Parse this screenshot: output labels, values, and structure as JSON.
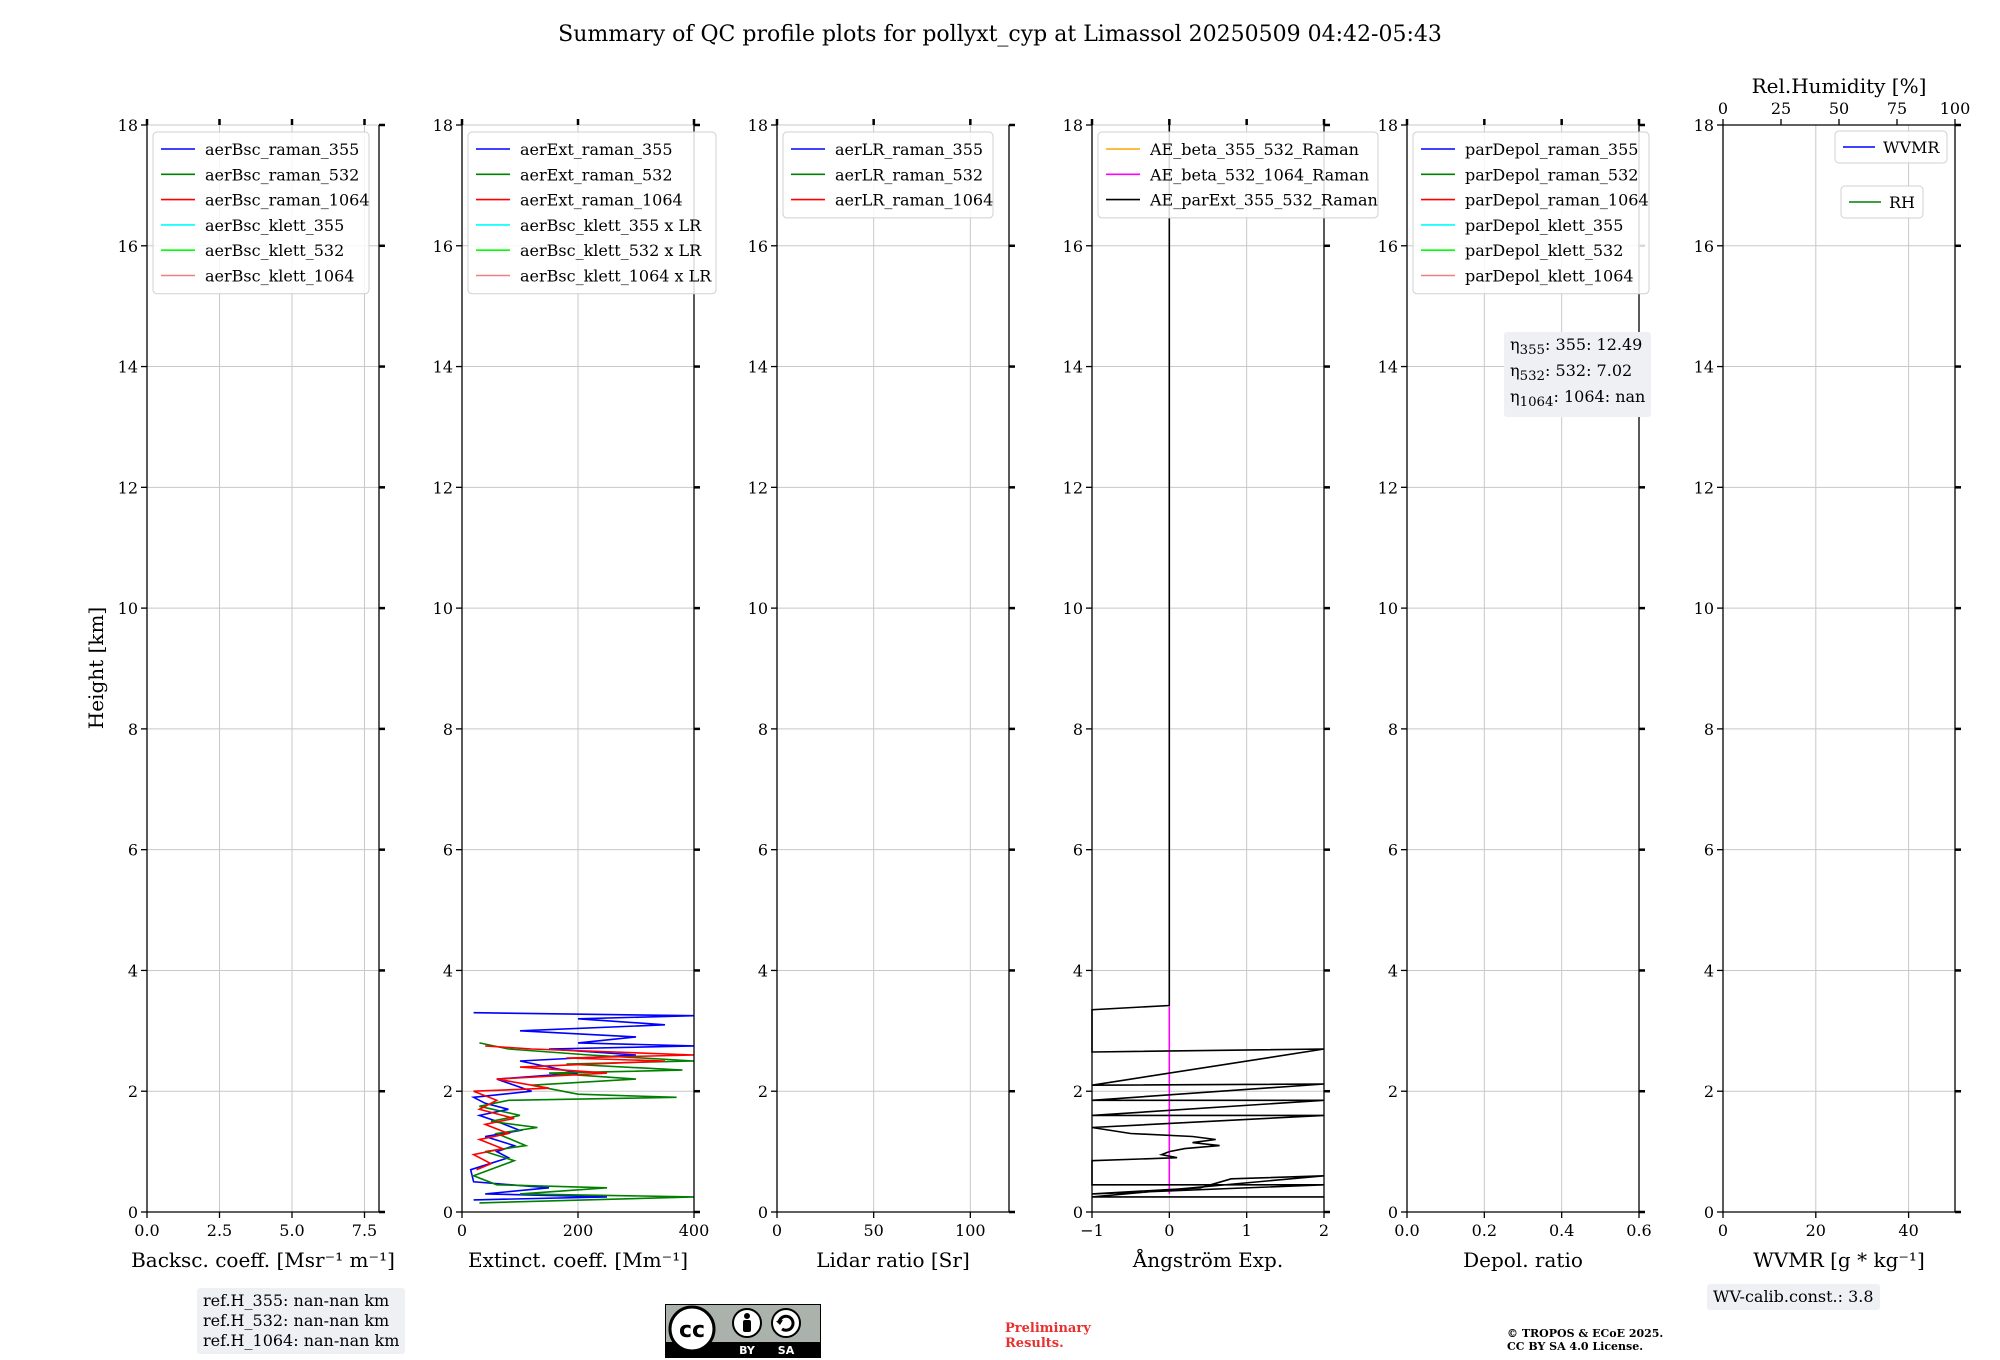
{
  "title": "Summary of QC profile plots for pollyxt_cyp at Limassol 20250509 04:42-05:43",
  "ylabel": "Height [km]",
  "chart_data": [
    {
      "type": "line",
      "id": "backscatter",
      "xlabel": "Backsc. coeff. [Msr⁻¹ m⁻¹]",
      "xlim": [
        0,
        8
      ],
      "xticks": [
        0,
        2.5,
        5,
        7.5
      ],
      "xticklabels": [
        "0.0",
        "2.5",
        "5.0",
        "7.5"
      ],
      "ylim": [
        0,
        18
      ],
      "yticks": [
        0,
        2,
        4,
        6,
        8,
        10,
        12,
        14,
        16,
        18
      ],
      "grid": true,
      "legend_loc": "upper-left",
      "series": [
        {
          "name": "aerBsc_raman_355",
          "color": "#0000ff",
          "points": []
        },
        {
          "name": "aerBsc_raman_532",
          "color": "#008000",
          "points": []
        },
        {
          "name": "aerBsc_raman_1064",
          "color": "#ff0000",
          "points": []
        },
        {
          "name": "aerBsc_klett_355",
          "color": "#00ffff",
          "points": []
        },
        {
          "name": "aerBsc_klett_532",
          "color": "#00ff00",
          "points": []
        },
        {
          "name": "aerBsc_klett_1064",
          "color": "#f08080",
          "points": []
        }
      ]
    },
    {
      "type": "line",
      "id": "extinction",
      "xlabel": "Extinct. coeff. [Mm⁻¹]",
      "xlim": [
        0,
        400
      ],
      "xticks": [
        0,
        200,
        400
      ],
      "xticklabels": [
        "0",
        "200",
        "400"
      ],
      "ylim": [
        0,
        18
      ],
      "yticks": [
        0,
        2,
        4,
        6,
        8,
        10,
        12,
        14,
        16,
        18
      ],
      "grid": true,
      "legend_loc": "upper-left",
      "series": [
        {
          "name": "aerExt_raman_355",
          "color": "#0000ff",
          "points": [
            [
              20,
              0.2
            ],
            [
              250,
              0.25
            ],
            [
              40,
              0.3
            ],
            [
              150,
              0.4
            ],
            [
              20,
              0.5
            ],
            [
              15,
              0.7
            ],
            [
              80,
              0.9
            ],
            [
              60,
              1.0
            ],
            [
              90,
              1.1
            ],
            [
              40,
              1.25
            ],
            [
              100,
              1.35
            ],
            [
              60,
              1.5
            ],
            [
              30,
              1.6
            ],
            [
              80,
              1.7
            ],
            [
              40,
              1.8
            ],
            [
              20,
              1.9
            ],
            [
              120,
              2.0
            ],
            [
              60,
              2.2
            ],
            [
              200,
              2.3
            ],
            [
              100,
              2.5
            ],
            [
              300,
              2.6
            ],
            [
              150,
              2.7
            ],
            [
              400,
              2.75
            ],
            [
              200,
              2.8
            ],
            [
              300,
              2.9
            ],
            [
              100,
              3.0
            ],
            [
              350,
              3.1
            ],
            [
              200,
              3.2
            ],
            [
              400,
              3.25
            ],
            [
              20,
              3.3
            ]
          ]
        },
        {
          "name": "aerExt_raman_532",
          "color": "#008000",
          "points": [
            [
              30,
              0.15
            ],
            [
              400,
              0.25
            ],
            [
              100,
              0.3
            ],
            [
              250,
              0.4
            ],
            [
              60,
              0.45
            ],
            [
              20,
              0.6
            ],
            [
              90,
              0.85
            ],
            [
              40,
              1.0
            ],
            [
              110,
              1.1
            ],
            [
              60,
              1.3
            ],
            [
              130,
              1.4
            ],
            [
              50,
              1.5
            ],
            [
              100,
              1.6
            ],
            [
              30,
              1.75
            ],
            [
              80,
              1.85
            ],
            [
              370,
              1.9
            ],
            [
              200,
              1.95
            ],
            [
              120,
              2.1
            ],
            [
              300,
              2.2
            ],
            [
              150,
              2.3
            ],
            [
              380,
              2.35
            ],
            [
              180,
              2.45
            ],
            [
              400,
              2.5
            ],
            [
              220,
              2.6
            ],
            [
              80,
              2.7
            ],
            [
              30,
              2.8
            ]
          ]
        },
        {
          "name": "aerExt_raman_1064",
          "color": "#ff0000",
          "points": [
            [
              25,
              0.7
            ],
            [
              50,
              0.8
            ],
            [
              20,
              0.95
            ],
            [
              70,
              1.05
            ],
            [
              30,
              1.2
            ],
            [
              80,
              1.3
            ],
            [
              40,
              1.45
            ],
            [
              90,
              1.55
            ],
            [
              30,
              1.7
            ],
            [
              60,
              1.85
            ],
            [
              20,
              2.0
            ],
            [
              150,
              2.05
            ],
            [
              60,
              2.2
            ],
            [
              250,
              2.3
            ],
            [
              100,
              2.4
            ],
            [
              350,
              2.5
            ],
            [
              180,
              2.55
            ],
            [
              400,
              2.6
            ],
            [
              120,
              2.7
            ],
            [
              40,
              2.75
            ]
          ]
        },
        {
          "name": "aerBsc_klett_355 x LR",
          "color": "#00ffff",
          "points": []
        },
        {
          "name": "aerBsc_klett_532 x LR",
          "color": "#00ff00",
          "points": []
        },
        {
          "name": "aerBsc_klett_1064 x LR",
          "color": "#f08080",
          "points": []
        }
      ]
    },
    {
      "type": "line",
      "id": "lidar_ratio",
      "xlabel": "Lidar ratio [Sr]",
      "xlim": [
        0,
        120
      ],
      "xticks": [
        0,
        50,
        100
      ],
      "xticklabels": [
        "0",
        "50",
        "100"
      ],
      "ylim": [
        0,
        18
      ],
      "yticks": [
        0,
        2,
        4,
        6,
        8,
        10,
        12,
        14,
        16,
        18
      ],
      "grid": true,
      "legend_loc": "upper-left",
      "series": [
        {
          "name": "aerLR_raman_355",
          "color": "#0000ff",
          "points": []
        },
        {
          "name": "aerLR_raman_532",
          "color": "#008000",
          "points": []
        },
        {
          "name": "aerLR_raman_1064",
          "color": "#ff0000",
          "points": []
        }
      ]
    },
    {
      "type": "line",
      "id": "angstrom",
      "xlabel": "Ångström Exp.",
      "xlim": [
        -1,
        2
      ],
      "xticks": [
        -1,
        0,
        1,
        2
      ],
      "xticklabels": [
        "−1",
        "0",
        "1",
        "2"
      ],
      "ylim": [
        0,
        18
      ],
      "yticks": [
        0,
        2,
        4,
        6,
        8,
        10,
        12,
        14,
        16,
        18
      ],
      "grid": true,
      "legend_loc": "upper-left",
      "series": [
        {
          "name": "AE_beta_355_532_Raman",
          "color": "#ffa500",
          "points": []
        },
        {
          "name": "AE_beta_532_1064_Raman",
          "color": "#ff00ff",
          "points": [
            [
              0,
              0.3
            ],
            [
              0,
              3.4
            ]
          ]
        },
        {
          "name": "AE_parExt_355_532_Raman",
          "color": "#000000",
          "points": [
            [
              0,
              18
            ],
            [
              0,
              3.42
            ],
            [
              -1,
              3.35
            ],
            [
              -1,
              2.65
            ],
            [
              2,
              2.7
            ],
            [
              -1,
              2.1
            ],
            [
              2,
              2.12
            ],
            [
              -1,
              1.85
            ],
            [
              2,
              1.85
            ],
            [
              -1,
              1.6
            ],
            [
              2,
              1.6
            ],
            [
              -1,
              1.4
            ],
            [
              -0.5,
              1.3
            ],
            [
              0.3,
              1.25
            ],
            [
              0.6,
              1.2
            ],
            [
              0.3,
              1.15
            ],
            [
              0.65,
              1.1
            ],
            [
              0.2,
              1.05
            ],
            [
              0,
              1.0
            ],
            [
              -0.1,
              0.95
            ],
            [
              0.1,
              0.9
            ],
            [
              -1,
              0.85
            ],
            [
              -1,
              0.45
            ],
            [
              2,
              0.45
            ],
            [
              -1,
              0.3
            ],
            [
              0.4,
              0.4
            ],
            [
              0.8,
              0.55
            ],
            [
              2,
              0.6
            ],
            [
              -1,
              0.25
            ],
            [
              2,
              0.25
            ]
          ]
        }
      ]
    },
    {
      "type": "line",
      "id": "depol",
      "xlabel": "Depol. ratio",
      "xlim": [
        0,
        0.6
      ],
      "xticks": [
        0,
        0.2,
        0.4,
        0.6
      ],
      "xticklabels": [
        "0.0",
        "0.2",
        "0.4",
        "0.6"
      ],
      "ylim": [
        0,
        18
      ],
      "yticks": [
        0,
        2,
        4,
        6,
        8,
        10,
        12,
        14,
        16,
        18
      ],
      "grid": true,
      "legend_loc": "upper-left",
      "series": [
        {
          "name": "parDepol_raman_355",
          "color": "#0000ff",
          "points": []
        },
        {
          "name": "parDepol_raman_532",
          "color": "#008000",
          "points": []
        },
        {
          "name": "parDepol_raman_1064",
          "color": "#ff0000",
          "points": []
        },
        {
          "name": "parDepol_klett_355",
          "color": "#00ffff",
          "points": []
        },
        {
          "name": "parDepol_klett_532",
          "color": "#00ff00",
          "points": []
        },
        {
          "name": "parDepol_klett_1064",
          "color": "#f08080",
          "points": []
        }
      ]
    },
    {
      "type": "line",
      "id": "wvmr",
      "xlabel": "WVMR [g * kg⁻¹]",
      "xlim": [
        0,
        50
      ],
      "xticks": [
        0,
        20,
        40
      ],
      "xticklabels": [
        "0",
        "20",
        "40"
      ],
      "top_xlabel": "Rel.Humidity [%]",
      "top_xlim": [
        0,
        100
      ],
      "top_xticks": [
        0,
        25,
        50,
        75,
        100
      ],
      "top_xticklabels": [
        "0",
        "25",
        "50",
        "75",
        "100"
      ],
      "ylim": [
        0,
        18
      ],
      "yticks": [
        0,
        2,
        4,
        6,
        8,
        10,
        12,
        14,
        16,
        18
      ],
      "grid": true,
      "legend_loc": "upper-right",
      "series": [
        {
          "name": "WVMR",
          "color": "#0000ff",
          "points": []
        },
        {
          "name": "RH",
          "color": "#008000",
          "points": []
        }
      ]
    }
  ],
  "annotations": {
    "eta": [
      "355: 12.49",
      "532: 7.02",
      "1064: nan"
    ],
    "ref_heights": [
      "ref.H_355: nan-nan km",
      "ref.H_532: nan-nan km",
      "ref.H_1064: nan-nan km"
    ],
    "wv_calib": "WV-calib.const.: 3.8",
    "cc_license_badge": {
      "cc": "cc",
      "by": "BY",
      "sa": "SA"
    },
    "preliminary": [
      "Preliminary",
      "Results."
    ],
    "copyright": [
      "© TROPOS & ECoE 2025.",
      "CC BY SA 4.0 License."
    ]
  }
}
